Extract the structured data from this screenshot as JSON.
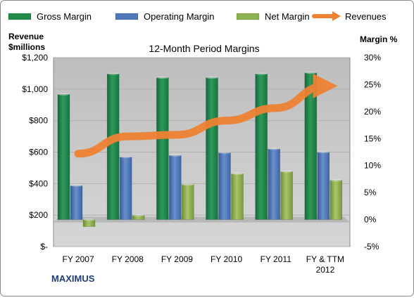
{
  "chart_data": {
    "type": "bar",
    "title": "12-Month Period Margins",
    "company": "MAXIMUS",
    "categories": [
      "FY 2007",
      "FY 2008",
      "FY 2009",
      "FY 2010",
      "FY 2011",
      "FY & TTM 2012"
    ],
    "series": [
      {
        "name": "Gross Margin",
        "axis": "right",
        "values": [
          23.2,
          27.0,
          26.3,
          26.3,
          27.0,
          27.2
        ]
      },
      {
        "name": "Operating Margin",
        "axis": "right",
        "values": [
          6.3,
          11.6,
          11.9,
          12.4,
          13.1,
          12.5
        ]
      },
      {
        "name": "Net Margin",
        "axis": "right",
        "values": [
          -1.3,
          0.8,
          6.5,
          8.5,
          8.9,
          7.3
        ]
      },
      {
        "name": "Revenues",
        "type": "line",
        "axis": "left",
        "values": [
          590,
          700,
          710,
          800,
          880,
          1020
        ]
      }
    ],
    "y_left": {
      "label_line1": "Revenue",
      "label_line2": "$millions",
      "range": [
        0,
        1200
      ],
      "ticks": [
        0,
        200,
        400,
        600,
        800,
        1000,
        1200
      ],
      "tick_labels": [
        "$-",
        "$200",
        "$400",
        "$600",
        "$800",
        "$1,000",
        "$1,200"
      ]
    },
    "y_right": {
      "label": "Margin %",
      "range": [
        -5,
        30
      ],
      "ticks": [
        -5,
        0,
        5,
        10,
        15,
        20,
        25,
        30
      ],
      "tick_labels": [
        "-5%",
        "0%",
        "5%",
        "10%",
        "15%",
        "20%",
        "25%",
        "30%"
      ]
    },
    "grid": true,
    "legend_position": "top",
    "colors": {
      "Gross Margin": "#1f8a4a",
      "Operating Margin": "#4f78b8",
      "Net Margin": "#8fb04e",
      "Revenues": "#ee8233",
      "plot_background": "#c8c8c8",
      "floor": "#a0a0a0"
    }
  }
}
